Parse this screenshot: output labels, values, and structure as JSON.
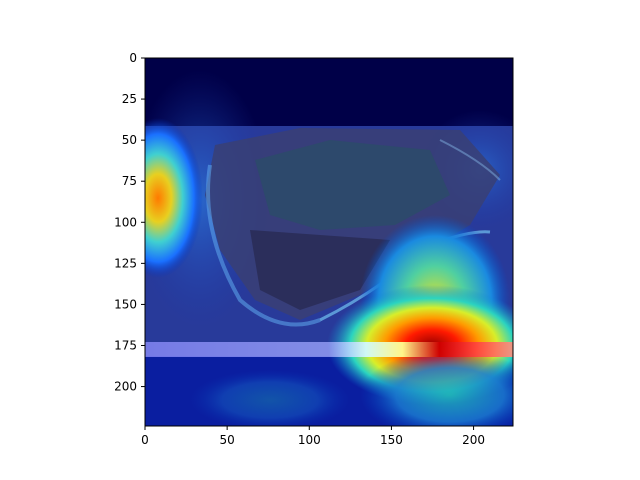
{
  "chart_data": {
    "type": "heatmap",
    "title": "",
    "xlabel": "",
    "ylabel": "",
    "xlim": [
      0,
      224
    ],
    "ylim": [
      224,
      0
    ],
    "x_ticks": [
      0,
      50,
      100,
      150,
      200
    ],
    "y_ticks": [
      0,
      25,
      50,
      75,
      100,
      125,
      150,
      175,
      200
    ],
    "colormap": "jet",
    "grid": false,
    "legend": "none",
    "background_image": "aerial-photo-of-coastal-fortress",
    "image_region": {
      "x": [
        0,
        224
      ],
      "y": [
        41,
        180
      ]
    },
    "hotspots": [
      {
        "x": 175,
        "y": 173,
        "intensity": 1.0
      },
      {
        "x": 8,
        "y": 85,
        "intensity": 0.75
      },
      {
        "x": 175,
        "y": 140,
        "intensity": 0.55
      }
    ]
  },
  "colors": {
    "dark_band": "#000040",
    "low": "#00008f",
    "high": "#ff0000"
  }
}
